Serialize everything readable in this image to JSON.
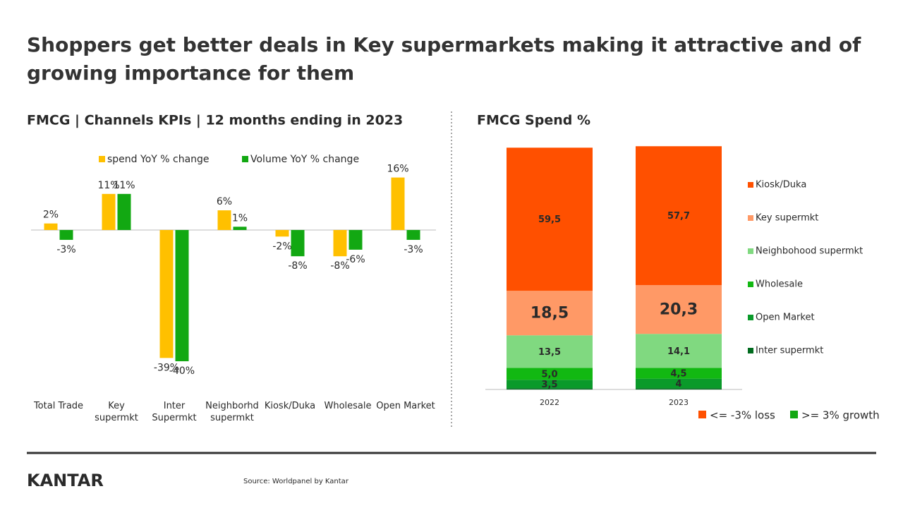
{
  "page": {
    "title": "Shoppers get better deals in Key supermarkets making it attractive and of growing importance for them",
    "source": "Source: Worldpanel by Kantar",
    "logo": "KANTAR"
  },
  "chart_data": [
    {
      "type": "bar",
      "title": "FMCG | Channels KPIs | 12 months ending in 2023",
      "categories": [
        "Total Trade",
        "Key supermkt",
        "Inter Supermkt",
        "Neighborhd supermkt",
        "Kiosk/Duka",
        "Wholesale",
        "Open Market"
      ],
      "series": [
        {
          "name": "spend YoY % change",
          "color": "#ffc000",
          "values": [
            2,
            11,
            -39,
            6,
            -2,
            -8,
            16
          ],
          "value_labels": [
            "2%",
            "11%",
            "-39%",
            "6%",
            "-2%",
            "-8%",
            "16%"
          ]
        },
        {
          "name": "Volume YoY % change",
          "color": "#12a812",
          "values": [
            -3,
            11,
            -40,
            1,
            -8,
            -6,
            -3
          ],
          "value_labels": [
            "-3%",
            "11%",
            "-40%",
            "1%",
            "-8%",
            "-6%",
            "-3%"
          ]
        }
      ]
    },
    {
      "type": "stacked-bar",
      "title": "FMCG Spend %",
      "categories": [
        "2022",
        "2023"
      ],
      "series": [
        {
          "name": "Inter supermkt",
          "color": "#006b1e",
          "values": [
            0.5,
            0.5
          ]
        },
        {
          "name": "Open Market",
          "color": "#0a9a2a",
          "values": [
            3.5,
            4
          ],
          "value_labels": [
            "3,5",
            "4"
          ]
        },
        {
          "name": "Wholesale",
          "color": "#12b812",
          "values": [
            5.0,
            4.5
          ],
          "value_labels": [
            "5,0",
            "4,5"
          ]
        },
        {
          "name": "Neighbohood supermkt",
          "color": "#80d980",
          "values": [
            13.5,
            14.1
          ],
          "value_labels": [
            "13,5",
            "14,1"
          ]
        },
        {
          "name": "Key supermkt",
          "color": "#ff9966",
          "values": [
            18.5,
            20.3
          ],
          "value_labels": [
            "18,5",
            "20,3"
          ]
        },
        {
          "name": "Kiosk/Duka",
          "color": "#ff5000",
          "values": [
            59.5,
            57.7
          ],
          "value_labels": [
            "59,5",
            "57,7"
          ]
        }
      ],
      "annotations": [
        {
          "text": "<= -3% loss",
          "color": "#ff5000"
        },
        {
          "text": ">= 3% growth",
          "color": "#12a812"
        }
      ]
    }
  ]
}
